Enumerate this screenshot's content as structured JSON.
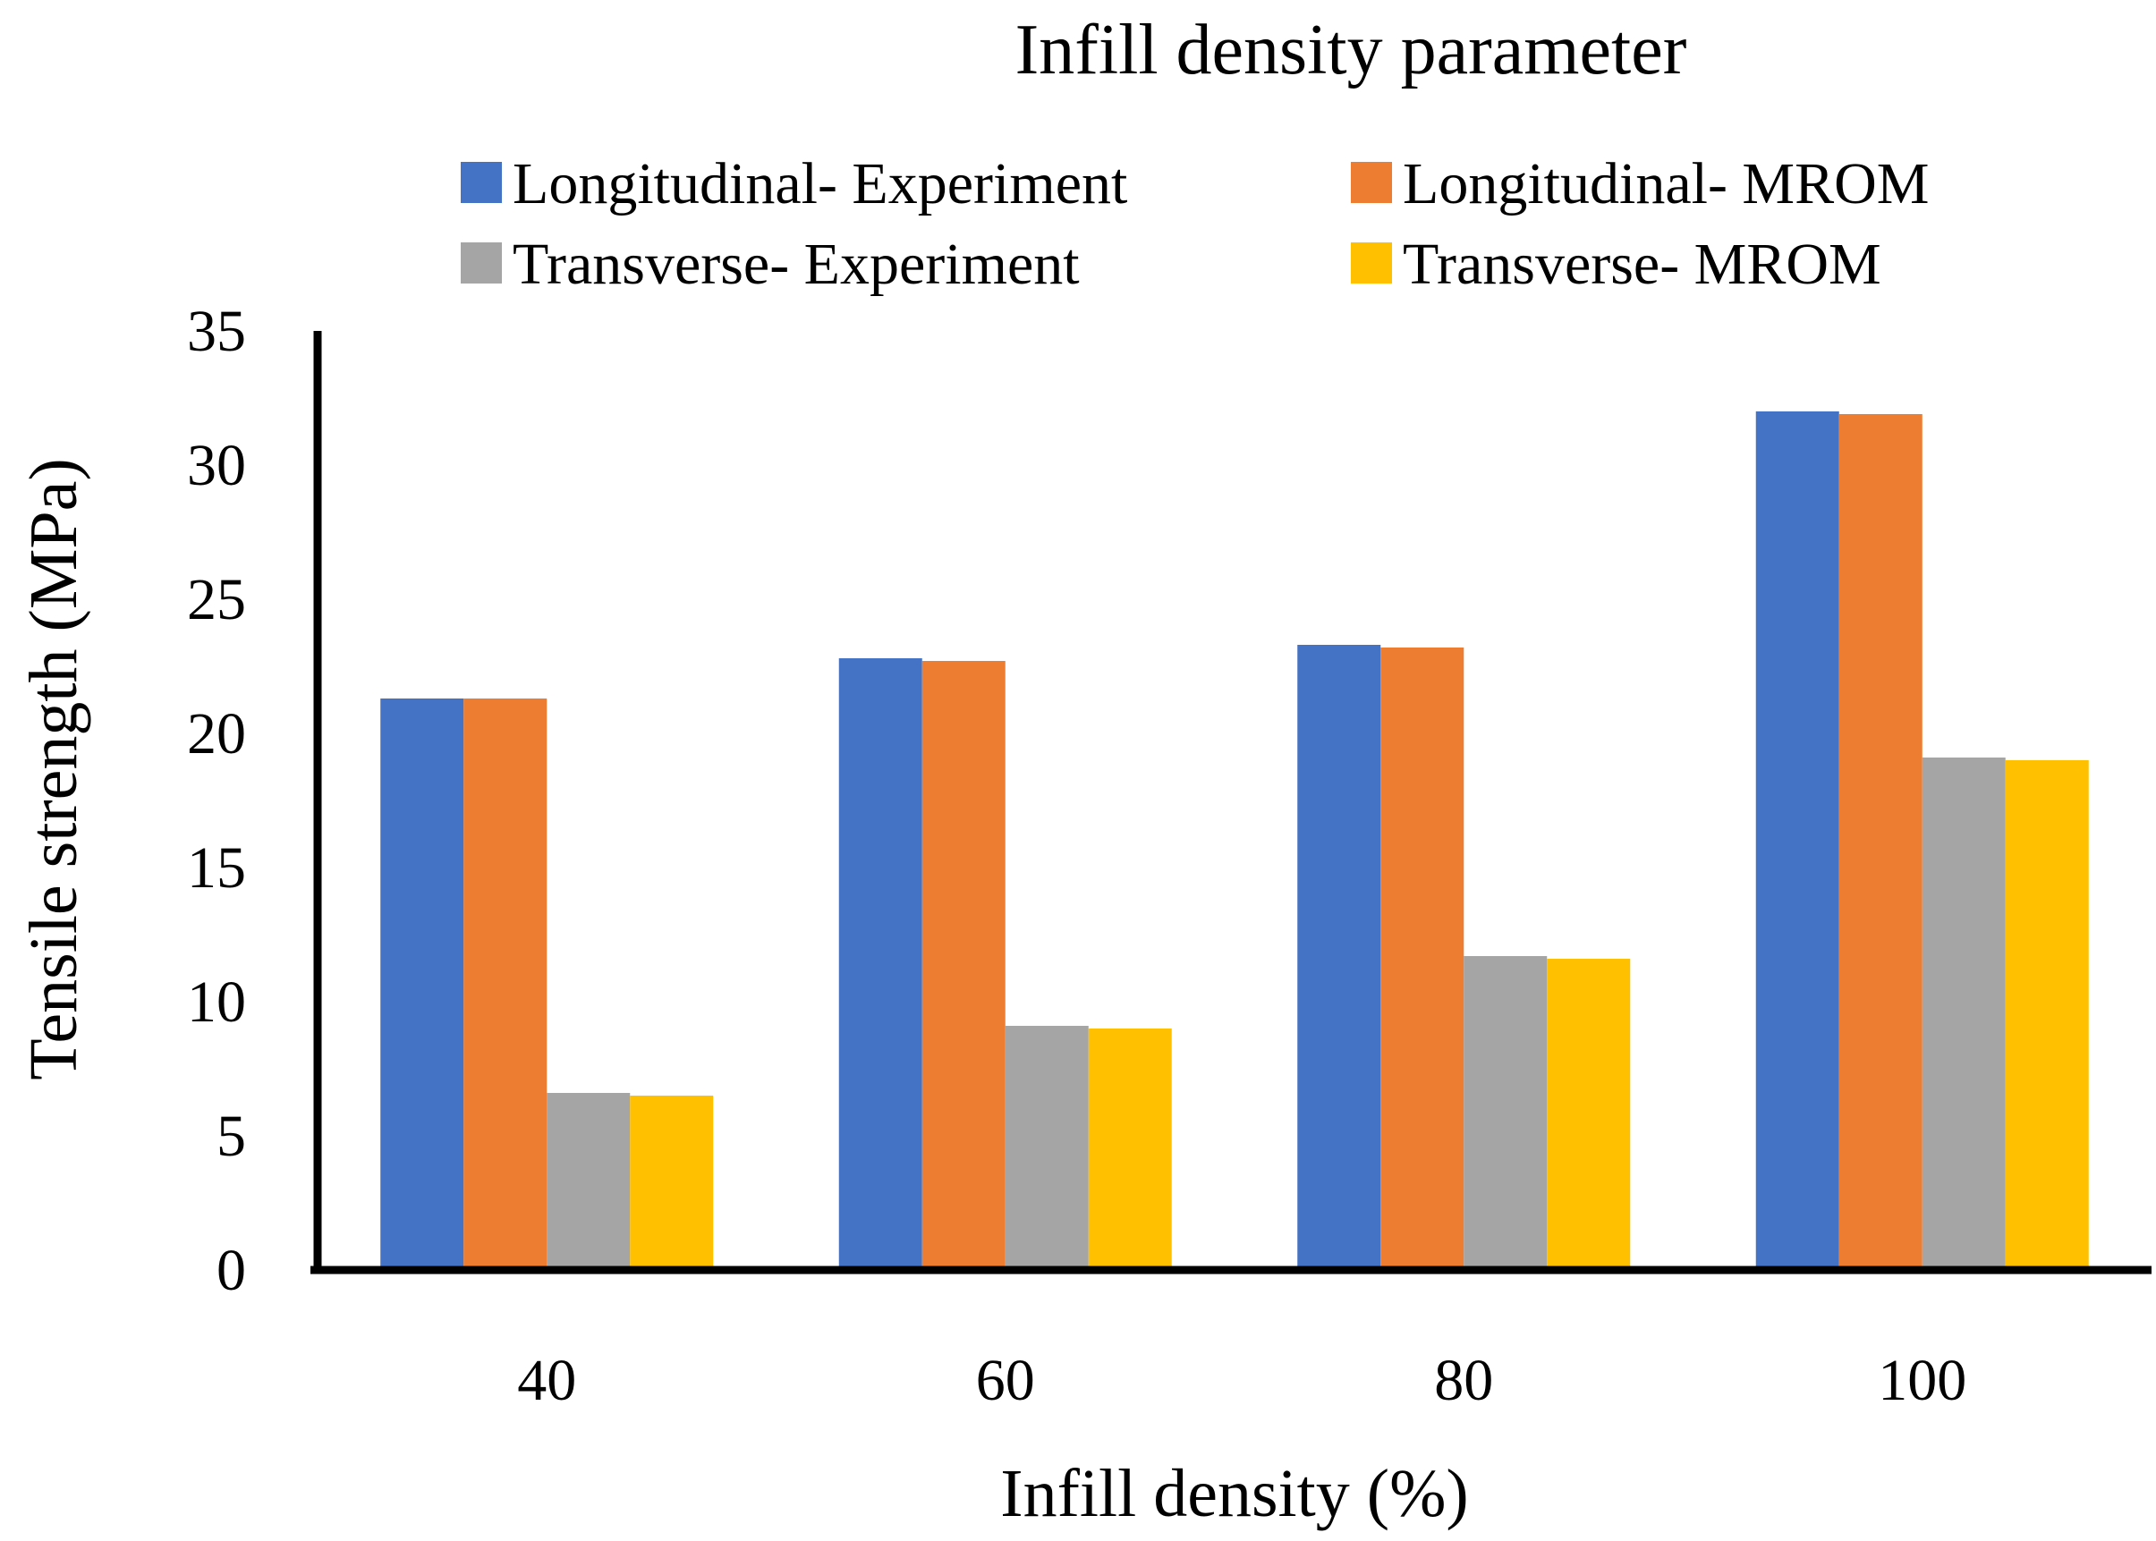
{
  "chart_data": {
    "type": "bar",
    "title": "Infill density parameter",
    "xlabel": "Infill density (%)",
    "ylabel": "Tensile strength (MPa)",
    "categories": [
      "40",
      "60",
      "80",
      "100"
    ],
    "ylim": [
      0,
      35
    ],
    "yticks": [
      0,
      5,
      10,
      15,
      20,
      25,
      30,
      35
    ],
    "grid": false,
    "legend_position": "top",
    "series": [
      {
        "name": "Longitudinal- Experiment",
        "color": "#4472C4",
        "values": [
          21.3,
          22.8,
          23.3,
          32.0
        ]
      },
      {
        "name": "Longitudinal- MROM",
        "color": "#ED7D31",
        "values": [
          21.3,
          22.7,
          23.2,
          31.9
        ]
      },
      {
        "name": "Transverse- Experiment",
        "color": "#A5A5A5",
        "values": [
          6.6,
          9.1,
          11.7,
          19.1
        ]
      },
      {
        "name": "Transverse- MROM",
        "color": "#FFC000",
        "values": [
          6.5,
          9.0,
          11.6,
          19.0
        ]
      }
    ]
  }
}
